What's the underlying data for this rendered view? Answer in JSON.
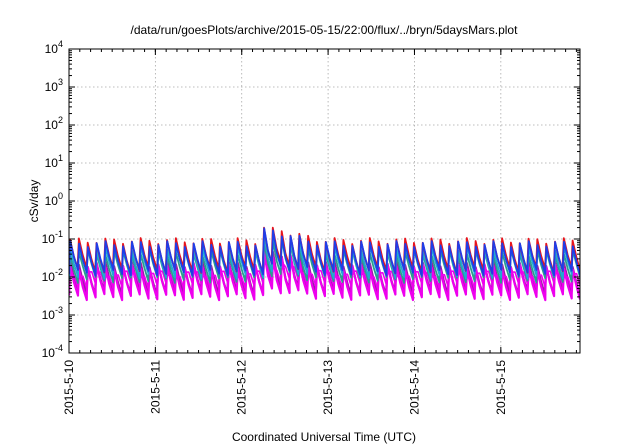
{
  "chart_data": {
    "type": "line",
    "title": "/data/run/goesPlots/archive/2015-05-15/22:00/flux/../bryn/5daysMars.plot",
    "xlabel": "Coordinated Universal Time (UTC)",
    "ylabel": "cSv/day",
    "yscale": "log",
    "ylim": [
      0.0001,
      10000
    ],
    "y_ticks": [
      {
        "value": 0.0001,
        "base": "10",
        "exp": "-4"
      },
      {
        "value": 0.001,
        "base": "10",
        "exp": "-3"
      },
      {
        "value": 0.01,
        "base": "10",
        "exp": "-2"
      },
      {
        "value": 0.1,
        "base": "10",
        "exp": "-1"
      },
      {
        "value": 1,
        "base": "10",
        "exp": "0"
      },
      {
        "value": 10,
        "base": "10",
        "exp": "1"
      },
      {
        "value": 100,
        "base": "10",
        "exp": "2"
      },
      {
        "value": 1000,
        "base": "10",
        "exp": "3"
      },
      {
        "value": 10000,
        "base": "10",
        "exp": "4"
      }
    ],
    "xlim": [
      "2015-05-10T00:00",
      "2015-05-15T22:00"
    ],
    "x_ticks": [
      "2015-5-10",
      "2015-5-11",
      "2015-5-12",
      "2015-5-13",
      "2015-5-14",
      "2015-5-15"
    ],
    "grid": true,
    "colors": {
      "magenta": "#ee00ee",
      "purple": "#9b1aa8",
      "red": "#e8141c",
      "blue": "#1f3de8",
      "cyan": "#1ea8d6",
      "teal": "#2a9d8f"
    }
  }
}
